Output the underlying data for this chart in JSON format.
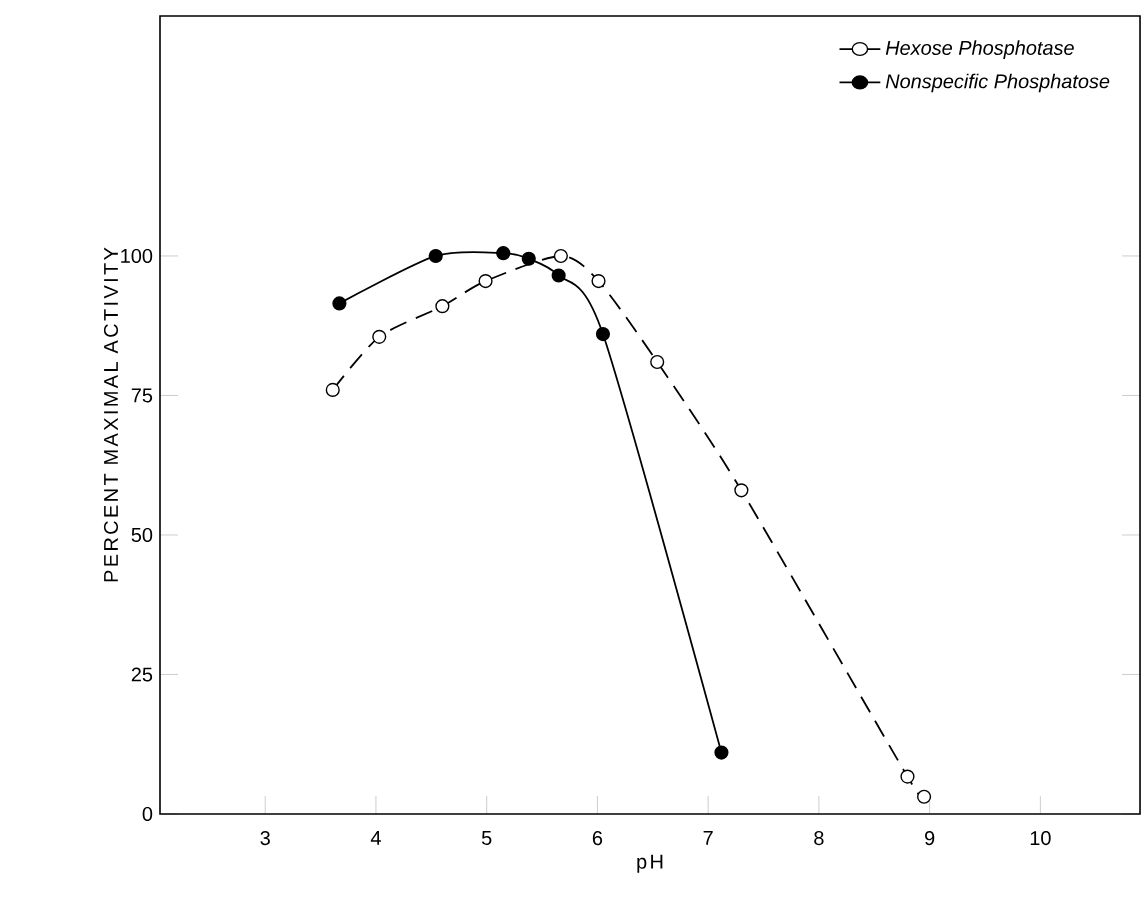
{
  "chart_data": {
    "type": "line",
    "xlabel": "pH",
    "ylabel": "PERCENT MAXIMAL ACTIVITY",
    "xlim": [
      2.05,
      10.9
    ],
    "ylim": [
      0,
      143
    ],
    "xticks": [
      3,
      4,
      5,
      6,
      7,
      8,
      9,
      10
    ],
    "yticks": [
      0,
      25,
      50,
      75,
      100
    ],
    "grid": false,
    "legend": "top right",
    "marker": "circle",
    "series": [
      {
        "name": "Hexose Phosphotase",
        "color": "#000000",
        "line_style": "dashed",
        "x": [
          3.61,
          4.03,
          4.6,
          4.99,
          5.67,
          6.01,
          6.54,
          7.3,
          8.8,
          8.95
        ],
        "values": [
          76,
          85.5,
          91,
          95.5,
          100,
          95.5,
          81,
          58,
          6.7,
          3.1
        ]
      },
      {
        "name": "Nonspecific Phosphatose",
        "color": "#000000",
        "line_style": "solid",
        "x": [
          3.67,
          4.54,
          5.15,
          5.38,
          5.65,
          6.05,
          7.12
        ],
        "values": [
          91.5,
          100,
          100.5,
          99.5,
          96.5,
          86,
          11
        ]
      }
    ]
  }
}
